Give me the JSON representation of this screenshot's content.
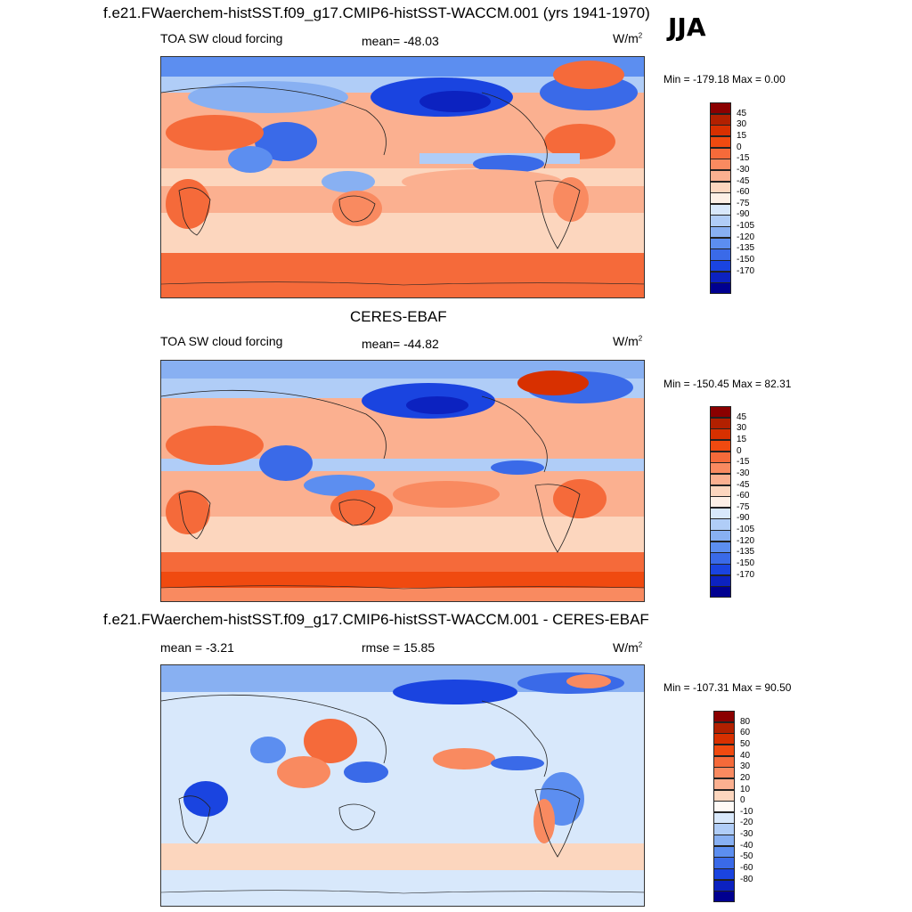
{
  "season": "JJA",
  "panels": [
    {
      "title": "f.e21.FWaerchem-histSST.f09_g17.CMIP6-histSST-WACCM.001 (yrs 1941-1970)",
      "left_label": "TOA SW cloud forcing",
      "center_label": "mean= -48.03",
      "units": "W/m",
      "units_sup": "2",
      "min_max": "Min = -179.18 Max =   0.00",
      "colorbar": {
        "labels": [
          "45",
          "30",
          "15",
          "0",
          "-15",
          "-30",
          "-45",
          "-60",
          "-75",
          "-90",
          "-105",
          "-120",
          "-135",
          "-150",
          "-170"
        ],
        "colors": [
          "#8b0000",
          "#b22000",
          "#d83000",
          "#f04a10",
          "#f56a3a",
          "#f98a60",
          "#fbb090",
          "#fcd6be",
          "#fdf0e6",
          "#d8e8fb",
          "#b0cdf7",
          "#88b0f2",
          "#5c8ef0",
          "#3a6ae8",
          "#1a44e0",
          "#0c22c0",
          "#000090"
        ]
      },
      "map_id": "model"
    },
    {
      "title": "CERES-EBAF",
      "left_label": "TOA SW cloud forcing",
      "center_label": "mean= -44.82",
      "units": "W/m",
      "units_sup": "2",
      "min_max": "Min = -150.45 Max =  82.31",
      "colorbar": {
        "labels": [
          "45",
          "30",
          "15",
          "0",
          "-15",
          "-30",
          "-45",
          "-60",
          "-75",
          "-90",
          "-105",
          "-120",
          "-135",
          "-150",
          "-170"
        ],
        "colors": [
          "#8b0000",
          "#b22000",
          "#d83000",
          "#f04a10",
          "#f56a3a",
          "#f98a60",
          "#fbb090",
          "#fcd6be",
          "#fdf0e6",
          "#d8e8fb",
          "#b0cdf7",
          "#88b0f2",
          "#5c8ef0",
          "#3a6ae8",
          "#1a44e0",
          "#0c22c0",
          "#000090"
        ]
      },
      "map_id": "obs"
    },
    {
      "title": "f.e21.FWaerchem-histSST.f09_g17.CMIP6-histSST-WACCM.001 - CERES-EBAF",
      "left_label": "mean =  -3.21",
      "center_label": "rmse =  15.85",
      "units": "W/m",
      "units_sup": "2",
      "min_max": "Min = -107.31 Max =  90.50",
      "colorbar": {
        "labels": [
          "80",
          "60",
          "50",
          "40",
          "30",
          "20",
          "10",
          "0",
          "-10",
          "-20",
          "-30",
          "-40",
          "-50",
          "-60",
          "-80"
        ],
        "colors": [
          "#8b0000",
          "#b22000",
          "#d83000",
          "#f04a10",
          "#f56a3a",
          "#f98a60",
          "#fbb090",
          "#fcd6be",
          "#fffaf6",
          "#d8e8fb",
          "#b0cdf7",
          "#88b0f2",
          "#5c8ef0",
          "#3a6ae8",
          "#1a44e0",
          "#0c22c0",
          "#000090"
        ]
      },
      "map_id": "diff"
    }
  ]
}
